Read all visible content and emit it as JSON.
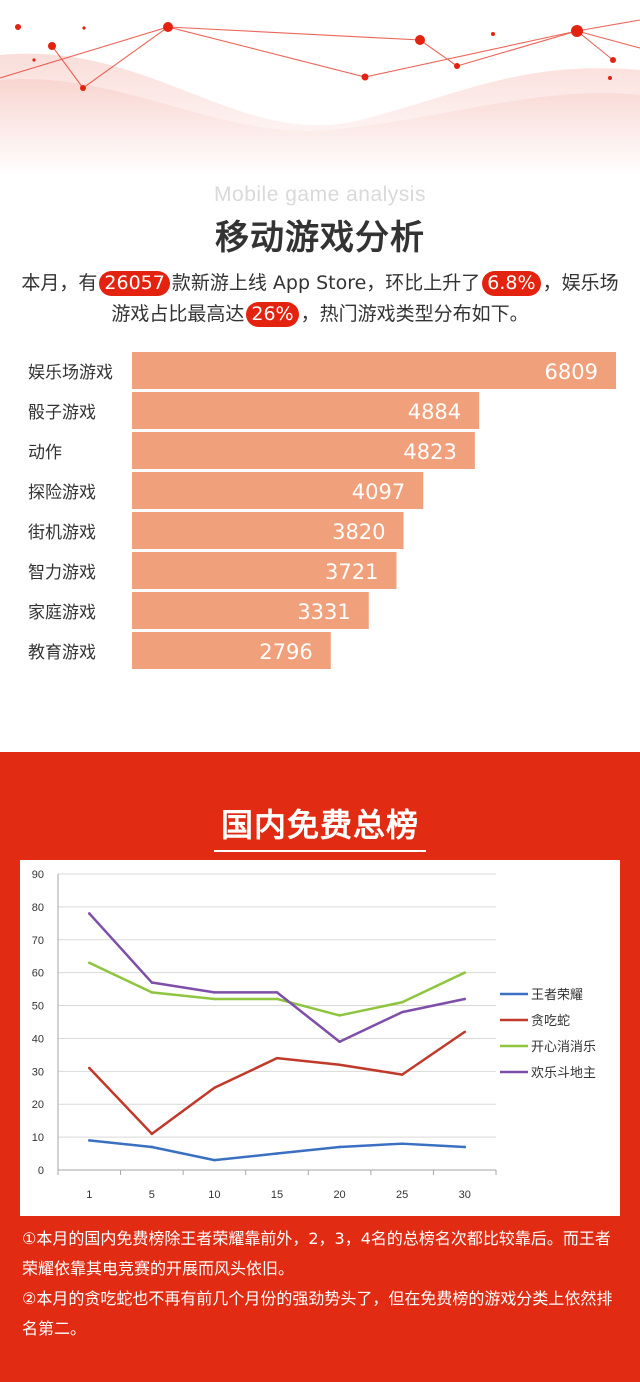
{
  "header": {
    "subtitle_en": "Mobile game analysis",
    "title_cn": "移动游戏分析"
  },
  "intro": {
    "seg1": "本月，有",
    "new_games": "26057",
    "seg2": "款新游上线 App Store，环比上升了",
    "growth": "6.8%",
    "seg3": "，娱乐场游戏占比最高达",
    "casino_share": "26%",
    "seg4": "，热门游戏类型分布如下。"
  },
  "colors": {
    "bar": "#f0a07b",
    "red": "#e12b12",
    "pill": "#e3230f",
    "series": [
      "#3a70c2",
      "#c0392b",
      "#8dc53e",
      "#7e4ea8"
    ]
  },
  "section2": {
    "title": "国内免费总榜",
    "notes": [
      "①本月的国内免费榜除王者荣耀靠前外，2，3，4名的总榜名次都比较靠后。而王者荣耀依靠其电竞赛的开展而风头依旧。",
      "②本月的贪吃蛇也不再有前几个月份的强劲势头了，但在免费榜的游戏分类上依然排名第二。"
    ]
  },
  "chart_data": [
    {
      "type": "bar",
      "orientation": "horizontal",
      "categories": [
        "娱乐场游戏",
        "骰子游戏",
        "动作",
        "探险游戏",
        "街机游戏",
        "智力游戏",
        "家庭游戏",
        "教育游戏"
      ],
      "values": [
        6809,
        4884,
        4823,
        4097,
        3820,
        3721,
        3331,
        2796
      ],
      "data_labels": true,
      "xlim": [
        0,
        6809
      ]
    },
    {
      "type": "line",
      "x": [
        "1",
        "5",
        "10",
        "15",
        "20",
        "25",
        "30"
      ],
      "ylim": [
        0,
        90
      ],
      "yticks": [
        "0",
        "10",
        "20",
        "30",
        "40",
        "50",
        "60",
        "70",
        "80",
        "90"
      ],
      "grid": true,
      "legend": "right",
      "series": [
        {
          "name": "王者荣耀",
          "values": [
            9,
            7,
            3,
            5,
            7,
            8,
            7
          ]
        },
        {
          "name": "贪吃蛇",
          "values": [
            31,
            11,
            25,
            34,
            32,
            29,
            42
          ]
        },
        {
          "name": "开心消消乐",
          "values": [
            63,
            54,
            52,
            52,
            47,
            51,
            60
          ]
        },
        {
          "name": "欢乐斗地主",
          "values": [
            78,
            57,
            54,
            54,
            39,
            48,
            52
          ]
        }
      ]
    }
  ]
}
